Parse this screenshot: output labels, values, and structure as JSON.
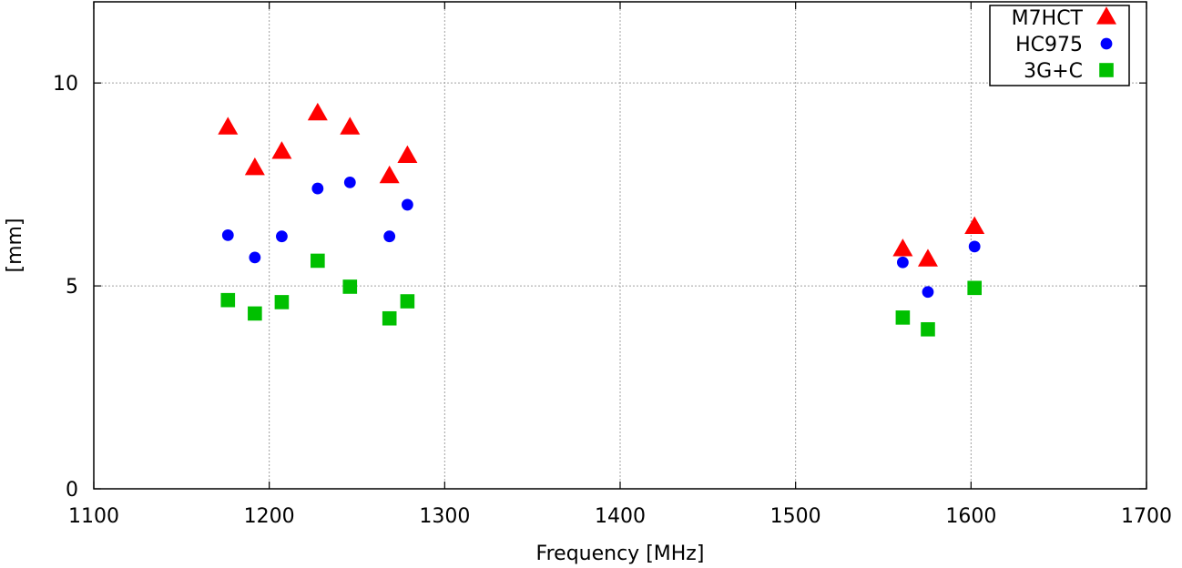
{
  "chart_data": {
    "type": "scatter",
    "title": "",
    "xlabel": "Frequency [MHz]",
    "ylabel": "[mm]",
    "xlim": [
      1100,
      1700
    ],
    "ylim": [
      0,
      12
    ],
    "xticks": [
      1100,
      1200,
      1300,
      1400,
      1500,
      1600,
      1700
    ],
    "yticks": [
      0,
      5,
      10
    ],
    "grid": true,
    "legend_position": "top-right",
    "series": [
      {
        "name": "M7HCT",
        "marker": "triangle",
        "color": "#ff0000",
        "points": [
          {
            "x": 1176.45,
            "y": 8.9
          },
          {
            "x": 1191.795,
            "y": 7.9
          },
          {
            "x": 1207.14,
            "y": 8.3
          },
          {
            "x": 1227.6,
            "y": 9.25
          },
          {
            "x": 1246.0,
            "y": 8.9
          },
          {
            "x": 1268.52,
            "y": 7.7
          },
          {
            "x": 1278.75,
            "y": 8.2
          },
          {
            "x": 1561.098,
            "y": 5.9
          },
          {
            "x": 1575.42,
            "y": 5.65
          },
          {
            "x": 1602.0,
            "y": 6.45
          }
        ]
      },
      {
        "name": "HC975",
        "marker": "circle",
        "color": "#0000ff",
        "points": [
          {
            "x": 1176.45,
            "y": 6.25
          },
          {
            "x": 1191.795,
            "y": 5.7
          },
          {
            "x": 1207.14,
            "y": 6.22
          },
          {
            "x": 1227.6,
            "y": 7.4
          },
          {
            "x": 1246.0,
            "y": 7.55
          },
          {
            "x": 1268.52,
            "y": 6.22
          },
          {
            "x": 1278.75,
            "y": 7.0
          },
          {
            "x": 1561.098,
            "y": 5.58
          },
          {
            "x": 1575.42,
            "y": 4.85
          },
          {
            "x": 1602.0,
            "y": 5.97
          }
        ]
      },
      {
        "name": "3G+C",
        "marker": "square",
        "color": "#00c000",
        "points": [
          {
            "x": 1176.45,
            "y": 4.65
          },
          {
            "x": 1191.795,
            "y": 4.32
          },
          {
            "x": 1207.14,
            "y": 4.6
          },
          {
            "x": 1227.6,
            "y": 5.62
          },
          {
            "x": 1246.0,
            "y": 4.98
          },
          {
            "x": 1268.52,
            "y": 4.2
          },
          {
            "x": 1278.75,
            "y": 4.62
          },
          {
            "x": 1561.098,
            "y": 4.22
          },
          {
            "x": 1575.42,
            "y": 3.93
          },
          {
            "x": 1602.0,
            "y": 4.95
          }
        ]
      }
    ]
  }
}
